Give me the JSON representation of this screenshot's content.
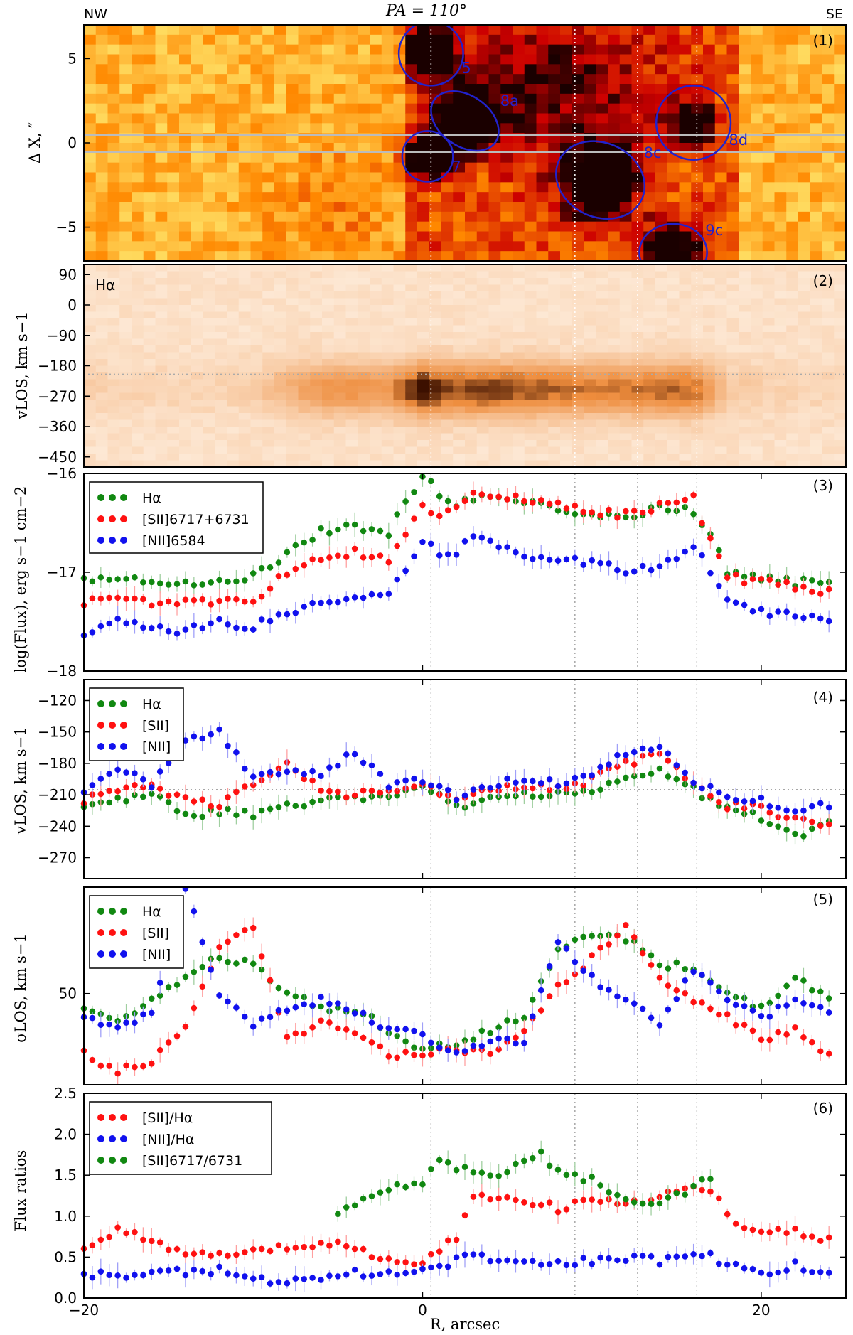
{
  "chart_data": [
    {
      "panel": "(1)",
      "type": "heatmap",
      "title": "PA = 110°",
      "corner_left": "NW",
      "corner_right": "SE",
      "ylabel": "Δ X, ″",
      "yticks": [
        "5",
        "0",
        "−5"
      ],
      "ytick_values": [
        5,
        0,
        -5
      ],
      "xlim": [
        -20,
        25
      ],
      "ylim": [
        -7,
        7
      ],
      "regions": [
        {
          "label": "5",
          "x": 0.5,
          "y": 5.3,
          "rx": 1.9,
          "ry": 1.9
        },
        {
          "label": "8a",
          "x": 2.5,
          "y": 1.3,
          "rx": 2.2,
          "ry": 1.5,
          "angle": 35
        },
        {
          "label": "7",
          "x": 0.3,
          "y": -0.8,
          "rx": 1.5,
          "ry": 1.5
        },
        {
          "label": "8c",
          "x": 10.5,
          "y": -2.2,
          "rx": 2.7,
          "ry": 2.2,
          "angle": 25
        },
        {
          "label": "8d",
          "x": 16.0,
          "y": 1.2,
          "rx": 2.2,
          "ry": 2.2
        },
        {
          "label": "9c",
          "x": 14.8,
          "y": -6.5,
          "rx": 2.0,
          "ry": 1.7
        }
      ]
    },
    {
      "panel": "(2)",
      "type": "heatmap",
      "line_label": "Hα",
      "ylabel": "vLOS, km s−1",
      "yticks": [
        "90",
        "0",
        "−90",
        "−180",
        "−270",
        "−360",
        "−450"
      ],
      "ytick_values": [
        90,
        0,
        -90,
        -180,
        -270,
        -360,
        -450
      ],
      "ylim": [
        -480,
        120
      ],
      "emission_center": -250
    },
    {
      "panel": "(3)",
      "type": "scatter",
      "ylabel": "log(Flux), erg s−1 cm−2",
      "yticks": [
        "−16",
        "−17",
        "−18"
      ],
      "ytick_values": [
        -16,
        -17,
        -18
      ],
      "ylim": [
        -18,
        -16
      ],
      "series": [
        {
          "name": "Hα",
          "color": "#118811",
          "x": [
            -20,
            -18,
            -16,
            -14,
            -12,
            -10,
            -8,
            -6,
            -4,
            -2,
            0,
            1,
            2,
            3,
            4,
            6,
            8,
            10,
            12,
            14,
            16,
            17,
            18,
            20,
            22,
            24
          ],
          "y": [
            -17.05,
            -17.08,
            -17.1,
            -17.1,
            -17.1,
            -17.05,
            -16.8,
            -16.58,
            -16.55,
            -16.6,
            -16.0,
            -16.2,
            -16.3,
            -16.25,
            -16.22,
            -16.3,
            -16.36,
            -16.42,
            -16.43,
            -16.35,
            -16.38,
            -16.6,
            -16.98,
            -17.05,
            -17.1,
            -17.1
          ]
        },
        {
          "name": "[SII]6717+6731",
          "color": "#ff1111",
          "x": [
            -20,
            -18,
            -16,
            -14,
            -12,
            -10,
            -8,
            -6,
            -4,
            -2,
            0,
            1,
            2,
            3,
            4,
            6,
            8,
            10,
            12,
            14,
            16,
            17,
            18,
            20,
            22,
            24
          ],
          "y": [
            -17.3,
            -17.25,
            -17.3,
            -17.3,
            -17.3,
            -17.3,
            -17.0,
            -16.85,
            -16.8,
            -16.88,
            -16.35,
            -16.42,
            -16.3,
            -16.2,
            -16.2,
            -16.26,
            -16.32,
            -16.38,
            -16.42,
            -16.32,
            -16.25,
            -16.68,
            -17.05,
            -17.1,
            -17.15,
            -17.2
          ]
        },
        {
          "name": "[NII]6584",
          "color": "#1111ee",
          "x": [
            -20,
            -18,
            -16,
            -14,
            -12,
            -10,
            -8,
            -6,
            -4,
            -2,
            0,
            1,
            2,
            3,
            4,
            6,
            8,
            10,
            12,
            14,
            16,
            17,
            18,
            20,
            22,
            24
          ],
          "y": [
            -17.6,
            -17.5,
            -17.55,
            -17.6,
            -17.5,
            -17.55,
            -17.4,
            -17.3,
            -17.25,
            -17.2,
            -16.7,
            -16.8,
            -16.8,
            -16.65,
            -16.7,
            -16.85,
            -16.85,
            -16.9,
            -16.98,
            -16.95,
            -16.72,
            -17.0,
            -17.3,
            -17.4,
            -17.45,
            -17.5
          ]
        }
      ]
    },
    {
      "panel": "(4)",
      "type": "scatter",
      "ylabel": "vLOS, km s−1",
      "yticks": [
        "−120",
        "−150",
        "−180",
        "−210",
        "−240",
        "−270"
      ],
      "ytick_values": [
        -120,
        -150,
        -180,
        -210,
        -240,
        -270
      ],
      "ylim": [
        -290,
        -100
      ],
      "series": [
        {
          "name": "Hα",
          "color": "#118811",
          "x": [
            -20,
            -18,
            -16,
            -14,
            -12,
            -10,
            -8,
            -6,
            -4,
            -2,
            0,
            2,
            4,
            6,
            8,
            10,
            12,
            14,
            16,
            18,
            20,
            22,
            24
          ],
          "y": [
            -220,
            -215,
            -210,
            -230,
            -225,
            -230,
            -220,
            -215,
            -215,
            -210,
            -200,
            -220,
            -215,
            -210,
            -210,
            -205,
            -195,
            -185,
            -205,
            -225,
            -232,
            -250,
            -235
          ]
        },
        {
          "name": "[SII]",
          "color": "#ff1111",
          "x": [
            -20,
            -18,
            -16,
            -14,
            -12,
            -10,
            -8,
            -6,
            -4,
            -2,
            0,
            2,
            4,
            6,
            8,
            10,
            12,
            14,
            16,
            18,
            20,
            22,
            24
          ],
          "y": [
            -215,
            -205,
            -200,
            -215,
            -220,
            -200,
            -180,
            -205,
            -210,
            -205,
            -198,
            -215,
            -205,
            -200,
            -205,
            -195,
            -180,
            -170,
            -200,
            -220,
            -220,
            -235,
            -240
          ]
        },
        {
          "name": "[NII]",
          "color": "#1111ee",
          "x": [
            -20,
            -18,
            -16,
            -14,
            -12,
            -10,
            -8,
            -6,
            -4,
            -2,
            0,
            2,
            4,
            6,
            8,
            10,
            12,
            14,
            16,
            18,
            20,
            22,
            24
          ],
          "y": [
            -210,
            -185,
            -200,
            -160,
            -150,
            -195,
            -185,
            -190,
            -170,
            -200,
            -195,
            -212,
            -200,
            -195,
            -200,
            -190,
            -170,
            -165,
            -195,
            -215,
            -215,
            -225,
            -220
          ]
        }
      ]
    },
    {
      "panel": "(5)",
      "type": "scatter",
      "ylabel": "σLOS, km s−1",
      "yticks": [
        "50"
      ],
      "ytick_values": [
        50
      ],
      "ylim": [
        20,
        85
      ],
      "series": [
        {
          "name": "Hα",
          "color": "#118811",
          "x": [
            -20,
            -18,
            -16,
            -14,
            -12,
            -10,
            -8,
            -6,
            -4,
            -2,
            0,
            2,
            4,
            6,
            8,
            10,
            12,
            14,
            16,
            18,
            20,
            22,
            24
          ],
          "y": [
            45,
            40,
            48,
            55,
            62,
            60,
            50,
            45,
            45,
            38,
            32,
            33,
            38,
            42,
            65,
            70,
            68,
            60,
            58,
            50,
            45,
            55,
            48
          ]
        },
        {
          "name": "[SII]",
          "color": "#ff1111",
          "x": [
            -20,
            -18,
            -16,
            -14,
            -12,
            -10,
            -8,
            -6,
            -4,
            -2,
            0,
            2,
            4,
            6,
            8,
            10,
            12,
            14,
            16,
            18,
            20,
            22,
            24
          ],
          "y": [
            30,
            25,
            27,
            40,
            65,
            72,
            35,
            40,
            38,
            30,
            30,
            32,
            30,
            38,
            52,
            62,
            72,
            55,
            48,
            42,
            35,
            38,
            30
          ]
        },
        {
          "name": "[NII]",
          "color": "#1111ee",
          "x": [
            -20,
            -18,
            -16,
            -14,
            -12,
            -10,
            -8,
            -6,
            -4,
            -2,
            0,
            2,
            4,
            6,
            8,
            10,
            12,
            14,
            16,
            18,
            20,
            22,
            24
          ],
          "y": [
            42,
            38,
            44,
            85,
            50,
            40,
            45,
            48,
            44,
            38,
            36,
            30,
            35,
            33,
            68,
            55,
            48,
            40,
            58,
            48,
            42,
            48,
            45
          ]
        }
      ]
    },
    {
      "panel": "(6)",
      "type": "scatter",
      "ylabel": "Flux ratios",
      "yticks": [
        "0.0",
        "0.5",
        "1.0",
        "1.5",
        "2.0",
        "2.5"
      ],
      "ytick_values": [
        0,
        0.5,
        1.0,
        1.5,
        2.0,
        2.5
      ],
      "ylim": [
        0,
        2.5
      ],
      "series": [
        {
          "name": "[SII]/Hα",
          "color": "#ff1111",
          "x": [
            -20,
            -18,
            -16,
            -14,
            -12,
            -10,
            -8,
            -6,
            -4,
            -2,
            0,
            2,
            3,
            4,
            6,
            8,
            10,
            12,
            14,
            16,
            17,
            18,
            20,
            22,
            24
          ],
          "y": [
            0.6,
            0.85,
            0.7,
            0.5,
            0.55,
            0.6,
            0.6,
            0.68,
            0.6,
            0.45,
            0.45,
            0.75,
            1.25,
            1.25,
            1.2,
            1.1,
            1.22,
            1.15,
            1.25,
            1.35,
            1.35,
            1.0,
            0.8,
            0.8,
            0.7
          ]
        },
        {
          "name": "[NII]/Hα",
          "color": "#1111ee",
          "x": [
            -20,
            -18,
            -16,
            -14,
            -12,
            -10,
            -8,
            -6,
            -4,
            -2,
            0,
            2,
            3,
            4,
            6,
            8,
            10,
            12,
            14,
            16,
            17,
            18,
            20,
            22,
            24
          ],
          "y": [
            0.3,
            0.25,
            0.35,
            0.3,
            0.35,
            0.25,
            0.2,
            0.25,
            0.3,
            0.32,
            0.35,
            0.45,
            0.55,
            0.5,
            0.45,
            0.45,
            0.45,
            0.5,
            0.45,
            0.55,
            0.5,
            0.4,
            0.3,
            0.4,
            0.3
          ]
        },
        {
          "name": "[SII]6717/6731",
          "color": "#118811",
          "x": [
            -5,
            -3,
            -1,
            0,
            1,
            2,
            3,
            4,
            6,
            7,
            8,
            10,
            12,
            13,
            14,
            16,
            17
          ],
          "y": [
            1.05,
            1.25,
            1.4,
            1.42,
            1.65,
            1.6,
            1.55,
            1.5,
            1.65,
            1.75,
            1.55,
            1.45,
            1.2,
            1.15,
            1.2,
            1.35,
            1.5
          ]
        }
      ]
    }
  ],
  "x_axis": {
    "label": "R, arcsec",
    "ticks": [
      "−20",
      "0",
      "20"
    ],
    "tick_values": [
      -20,
      0,
      20
    ],
    "xlim": [
      -20,
      25
    ]
  },
  "vertical_markers": [
    0.5,
    9.0,
    12.7,
    16.2
  ],
  "colors": {
    "heat_hot": "#ffff88",
    "heat_mid": "#ff8800",
    "heat_cold": "#cc0000",
    "heat_dark": "#1a0000",
    "region": "#2222cc"
  }
}
